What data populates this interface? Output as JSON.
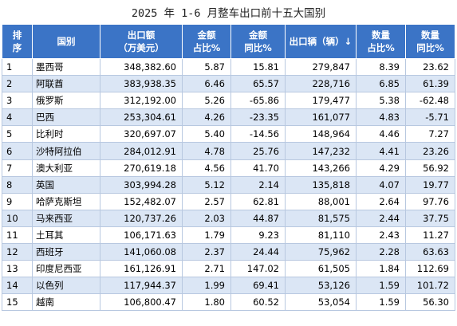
{
  "title": "2025 年 1-6 月整车出口前十五大国别",
  "headers": {
    "rank": [
      "排",
      "序"
    ],
    "country": "国别",
    "amount": [
      "出口额",
      "（万美元）"
    ],
    "amount_share": [
      "金额",
      "占比%"
    ],
    "amount_yoy": [
      "金额",
      "同比%"
    ],
    "volume": "出口辆（辆）↓",
    "volume_share": [
      "数量",
      "占比%"
    ],
    "volume_yoy": [
      "数量",
      "同比%"
    ]
  },
  "rows": [
    {
      "rank": "1",
      "country": "墨西哥",
      "amount": "348,382.60",
      "amount_share": "5.87",
      "amount_yoy": "15.81",
      "volume": "279,847",
      "volume_share": "8.39",
      "volume_yoy": "23.62"
    },
    {
      "rank": "2",
      "country": "阿联酋",
      "amount": "383,938.35",
      "amount_share": "6.46",
      "amount_yoy": "65.57",
      "volume": "228,716",
      "volume_share": "6.85",
      "volume_yoy": "61.39"
    },
    {
      "rank": "3",
      "country": "俄罗斯",
      "amount": "312,192.00",
      "amount_share": "5.26",
      "amount_yoy": "-65.86",
      "volume": "179,477",
      "volume_share": "5.38",
      "volume_yoy": "-62.48"
    },
    {
      "rank": "4",
      "country": "巴西",
      "amount": "253,304.61",
      "amount_share": "4.26",
      "amount_yoy": "-23.35",
      "volume": "161,077",
      "volume_share": "4.83",
      "volume_yoy": "-5.71"
    },
    {
      "rank": "5",
      "country": "比利时",
      "amount": "320,697.07",
      "amount_share": "5.40",
      "amount_yoy": "-14.56",
      "volume": "148,964",
      "volume_share": "4.46",
      "volume_yoy": "7.27"
    },
    {
      "rank": "6",
      "country": "沙特阿拉伯",
      "amount": "284,012.91",
      "amount_share": "4.78",
      "amount_yoy": "25.76",
      "volume": "147,232",
      "volume_share": "4.41",
      "volume_yoy": "23.26"
    },
    {
      "rank": "7",
      "country": "澳大利亚",
      "amount": "270,619.18",
      "amount_share": "4.56",
      "amount_yoy": "41.70",
      "volume": "143,266",
      "volume_share": "4.29",
      "volume_yoy": "56.92"
    },
    {
      "rank": "8",
      "country": "英国",
      "amount": "303,994.28",
      "amount_share": "5.12",
      "amount_yoy": "2.14",
      "volume": "135,818",
      "volume_share": "4.07",
      "volume_yoy": "19.77"
    },
    {
      "rank": "9",
      "country": "哈萨克斯坦",
      "amount": "152,482.07",
      "amount_share": "2.57",
      "amount_yoy": "62.81",
      "volume": "88,001",
      "volume_share": "2.64",
      "volume_yoy": "97.76"
    },
    {
      "rank": "10",
      "country": "马来西亚",
      "amount": "120,737.26",
      "amount_share": "2.03",
      "amount_yoy": "44.87",
      "volume": "81,575",
      "volume_share": "2.44",
      "volume_yoy": "37.75"
    },
    {
      "rank": "11",
      "country": "土耳其",
      "amount": "106,171.63",
      "amount_share": "1.79",
      "amount_yoy": "9.23",
      "volume": "81,110",
      "volume_share": "2.43",
      "volume_yoy": "11.27"
    },
    {
      "rank": "12",
      "country": "西班牙",
      "amount": "141,060.08",
      "amount_share": "2.37",
      "amount_yoy": "24.44",
      "volume": "75,962",
      "volume_share": "2.28",
      "volume_yoy": "63.63"
    },
    {
      "rank": "13",
      "country": "印度尼西亚",
      "amount": "161,126.91",
      "amount_share": "2.71",
      "amount_yoy": "147.02",
      "volume": "61,505",
      "volume_share": "1.84",
      "volume_yoy": "112.69"
    },
    {
      "rank": "14",
      "country": "以色列",
      "amount": "117,944.37",
      "amount_share": "1.99",
      "amount_yoy": "69.41",
      "volume": "53,126",
      "volume_share": "1.59",
      "volume_yoy": "101.72"
    },
    {
      "rank": "15",
      "country": "越南",
      "amount": "106,800.47",
      "amount_share": "1.80",
      "amount_yoy": "60.52",
      "volume": "53,054",
      "volume_share": "1.59",
      "volume_yoy": "56.30"
    }
  ]
}
